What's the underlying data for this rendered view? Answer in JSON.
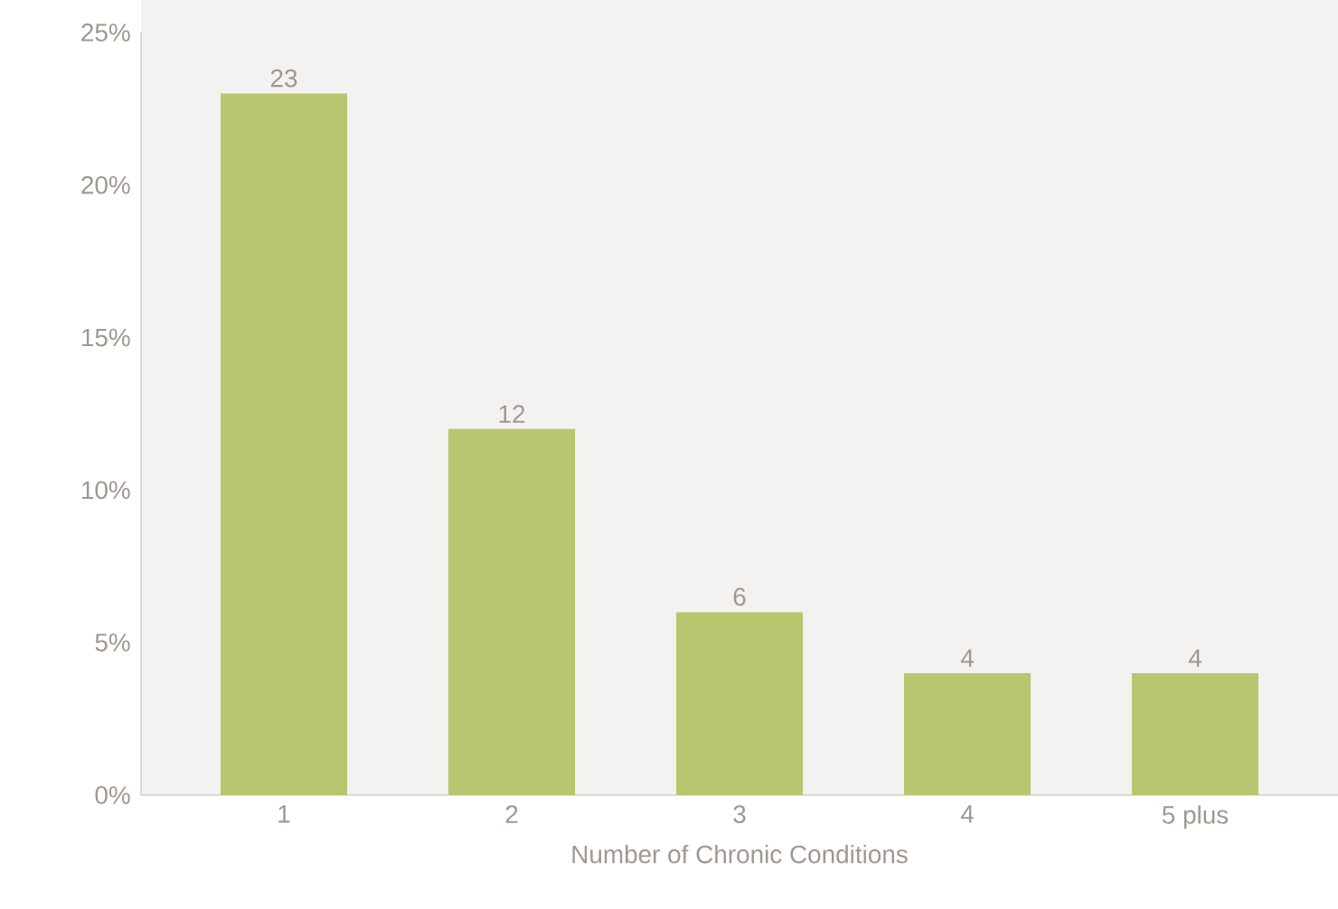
{
  "chart_data": {
    "type": "bar",
    "xlabel": "Number of Chronic Conditions",
    "categories": [
      "1",
      "2",
      "3",
      "4",
      "5 plus"
    ],
    "values": [
      23,
      12,
      6,
      4,
      4
    ],
    "color": "#b8c76f",
    "ylim": [
      0,
      25
    ],
    "yticks": [
      {
        "value": 0,
        "label": "0%"
      },
      {
        "value": 5,
        "label": "5%"
      },
      {
        "value": 10,
        "label": "10%"
      },
      {
        "value": 15,
        "label": "15%"
      },
      {
        "value": 20,
        "label": "20%"
      },
      {
        "value": 25,
        "label": "25%"
      }
    ],
    "data_labels": true
  }
}
